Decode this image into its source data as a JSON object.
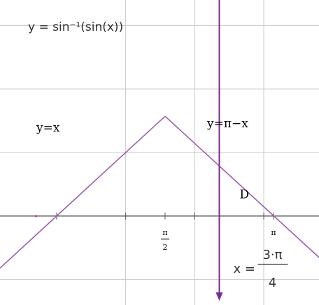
{
  "chart_data": {
    "type": "line",
    "title": "y = sin⁻¹(sin(x))",
    "xlim": [
      -0.82,
      3.8
    ],
    "ylim": [
      -1.4,
      3.4
    ],
    "grid": true,
    "series": [
      {
        "label": "y=x",
        "points": [
          [
            -0.82,
            -0.82
          ],
          [
            1.5708,
            1.5708
          ]
        ]
      },
      {
        "label": "y=π−x",
        "points": [
          [
            1.5708,
            1.5708
          ],
          [
            4.3,
            -1.15
          ]
        ]
      }
    ],
    "x_ticks": [
      {
        "value": 1.5708,
        "label_top": "π",
        "label_bottom": "2"
      },
      {
        "value": 3.1416,
        "label": "π"
      }
    ],
    "vertical_line": {
      "x": 2.3562,
      "label_lhs": "x =",
      "label_num": "3·π",
      "label_den": "4"
    },
    "annotations": [
      {
        "text": "D",
        "x": 2.65,
        "y": 0.28
      }
    ],
    "colors": {
      "curve": "#9b5fb5",
      "vertical_line": "#7d2a8f",
      "grid": "#c8c8c8",
      "axis": "#555555"
    }
  }
}
